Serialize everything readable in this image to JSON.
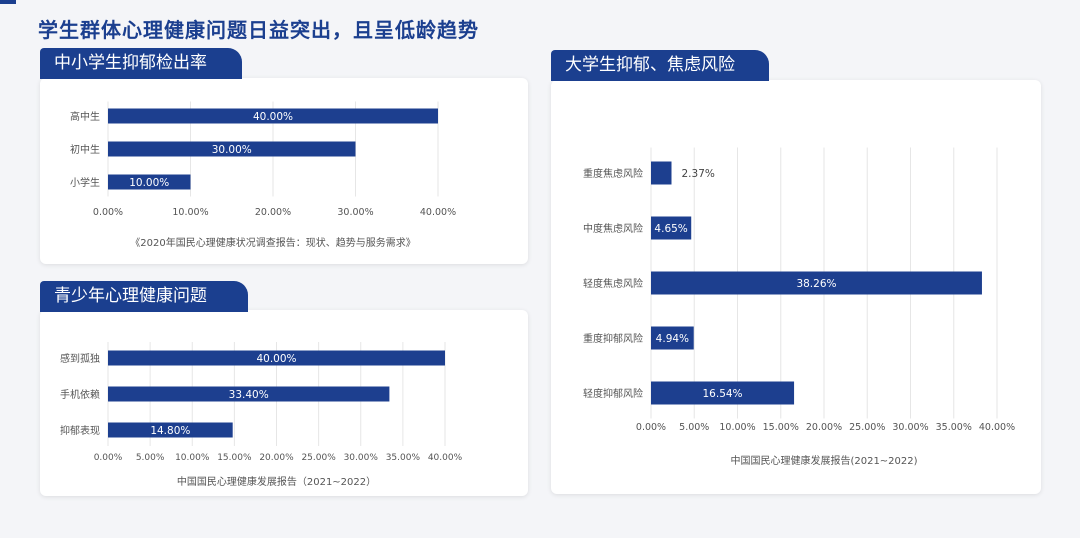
{
  "page": {
    "title": "学生群体心理健康问题日益突出，且呈低龄趋势"
  },
  "colors": {
    "bar": "#1d3f8f",
    "grid": "#e6e6e6",
    "axis_text": "#555555",
    "bar_label": "#ffffff",
    "outside_label": "#444444"
  },
  "chart_data": [
    {
      "type": "bar",
      "orientation": "horizontal",
      "title": "中小学生抑郁检出率",
      "categories": [
        "高中生",
        "初中生",
        "小学生"
      ],
      "values": [
        40.0,
        30.0,
        10.0
      ],
      "value_labels": [
        "40.00%",
        "30.00%",
        "10.00%"
      ],
      "xlim": [
        0,
        40
      ],
      "xticks": [
        0,
        10,
        20,
        30,
        40
      ],
      "xtick_labels": [
        "0.00%",
        "10.00%",
        "20.00%",
        "30.00%",
        "40.00%"
      ],
      "grid": true,
      "source": "《2020年国民心理健康状况调查报告：现状、趋势与服务需求》"
    },
    {
      "type": "bar",
      "orientation": "horizontal",
      "title": "青少年心理健康问题",
      "categories": [
        "感到孤独",
        "手机依赖",
        "抑郁表现"
      ],
      "values": [
        40.0,
        33.4,
        14.8
      ],
      "value_labels": [
        "40.00%",
        "33.40%",
        "14.80%"
      ],
      "xlim": [
        0,
        40
      ],
      "xticks": [
        0,
        5,
        10,
        15,
        20,
        25,
        30,
        35,
        40
      ],
      "xtick_labels": [
        "0.00%",
        "5.00%",
        "10.00%",
        "15.00%",
        "20.00%",
        "25.00%",
        "30.00%",
        "35.00%",
        "40.00%"
      ],
      "grid": true,
      "source": "中国国民心理健康发展报告（2021~2022）"
    },
    {
      "type": "bar",
      "orientation": "horizontal",
      "title": "大学生抑郁、焦虑风险",
      "categories": [
        "重度焦虑风险",
        "中度焦虑风险",
        "轻度焦虑风险",
        "重度抑郁风险",
        "轻度抑郁风险"
      ],
      "values": [
        2.37,
        4.65,
        38.26,
        4.94,
        16.54
      ],
      "value_labels": [
        "2.37%",
        "4.65%",
        "38.26%",
        "4.94%",
        "16.54%"
      ],
      "xlim": [
        0,
        40
      ],
      "xticks": [
        0,
        5,
        10,
        15,
        20,
        25,
        30,
        35,
        40
      ],
      "xtick_labels": [
        "0.00%",
        "5.00%",
        "10.00%",
        "15.00%",
        "20.00%",
        "25.00%",
        "30.00%",
        "35.00%",
        "40.00%"
      ],
      "grid": true,
      "source": "中国国民心理健康发展报告(2021~2022)"
    }
  ]
}
